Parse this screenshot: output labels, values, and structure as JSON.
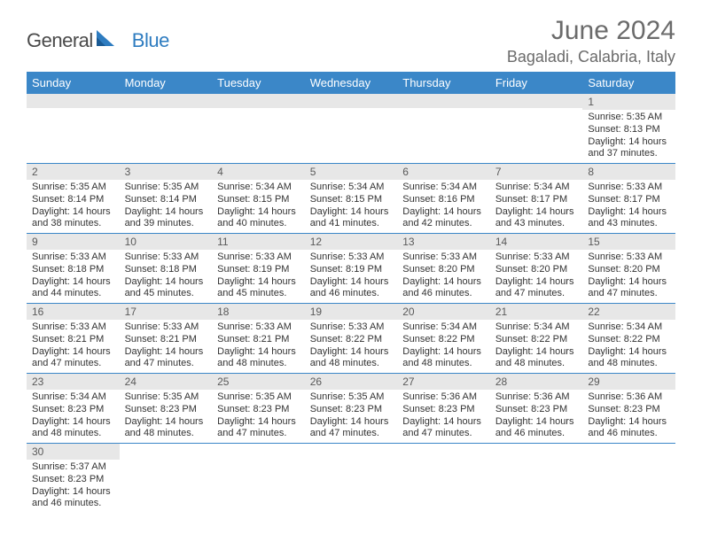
{
  "logo": {
    "general": "General",
    "blue": "Blue"
  },
  "title": "June 2024",
  "location": "Bagaladi, Calabria, Italy",
  "weekdays": [
    "Sunday",
    "Monday",
    "Tuesday",
    "Wednesday",
    "Thursday",
    "Friday",
    "Saturday"
  ],
  "colors": {
    "header_bg": "#3b87c8",
    "header_text": "#ffffff",
    "daynum_bg": "#e7e7e7",
    "rule": "#3b87c8",
    "title_color": "#6b6b6b",
    "logo_gray": "#4a4a4a",
    "logo_blue": "#2e7cc0"
  },
  "weeks": [
    [
      null,
      null,
      null,
      null,
      null,
      null,
      {
        "n": "1",
        "sunrise": "Sunrise: 5:35 AM",
        "sunset": "Sunset: 8:13 PM",
        "daylight": "Daylight: 14 hours and 37 minutes."
      }
    ],
    [
      {
        "n": "2",
        "sunrise": "Sunrise: 5:35 AM",
        "sunset": "Sunset: 8:14 PM",
        "daylight": "Daylight: 14 hours and 38 minutes."
      },
      {
        "n": "3",
        "sunrise": "Sunrise: 5:35 AM",
        "sunset": "Sunset: 8:14 PM",
        "daylight": "Daylight: 14 hours and 39 minutes."
      },
      {
        "n": "4",
        "sunrise": "Sunrise: 5:34 AM",
        "sunset": "Sunset: 8:15 PM",
        "daylight": "Daylight: 14 hours and 40 minutes."
      },
      {
        "n": "5",
        "sunrise": "Sunrise: 5:34 AM",
        "sunset": "Sunset: 8:15 PM",
        "daylight": "Daylight: 14 hours and 41 minutes."
      },
      {
        "n": "6",
        "sunrise": "Sunrise: 5:34 AM",
        "sunset": "Sunset: 8:16 PM",
        "daylight": "Daylight: 14 hours and 42 minutes."
      },
      {
        "n": "7",
        "sunrise": "Sunrise: 5:34 AM",
        "sunset": "Sunset: 8:17 PM",
        "daylight": "Daylight: 14 hours and 43 minutes."
      },
      {
        "n": "8",
        "sunrise": "Sunrise: 5:33 AM",
        "sunset": "Sunset: 8:17 PM",
        "daylight": "Daylight: 14 hours and 43 minutes."
      }
    ],
    [
      {
        "n": "9",
        "sunrise": "Sunrise: 5:33 AM",
        "sunset": "Sunset: 8:18 PM",
        "daylight": "Daylight: 14 hours and 44 minutes."
      },
      {
        "n": "10",
        "sunrise": "Sunrise: 5:33 AM",
        "sunset": "Sunset: 8:18 PM",
        "daylight": "Daylight: 14 hours and 45 minutes."
      },
      {
        "n": "11",
        "sunrise": "Sunrise: 5:33 AM",
        "sunset": "Sunset: 8:19 PM",
        "daylight": "Daylight: 14 hours and 45 minutes."
      },
      {
        "n": "12",
        "sunrise": "Sunrise: 5:33 AM",
        "sunset": "Sunset: 8:19 PM",
        "daylight": "Daylight: 14 hours and 46 minutes."
      },
      {
        "n": "13",
        "sunrise": "Sunrise: 5:33 AM",
        "sunset": "Sunset: 8:20 PM",
        "daylight": "Daylight: 14 hours and 46 minutes."
      },
      {
        "n": "14",
        "sunrise": "Sunrise: 5:33 AM",
        "sunset": "Sunset: 8:20 PM",
        "daylight": "Daylight: 14 hours and 47 minutes."
      },
      {
        "n": "15",
        "sunrise": "Sunrise: 5:33 AM",
        "sunset": "Sunset: 8:20 PM",
        "daylight": "Daylight: 14 hours and 47 minutes."
      }
    ],
    [
      {
        "n": "16",
        "sunrise": "Sunrise: 5:33 AM",
        "sunset": "Sunset: 8:21 PM",
        "daylight": "Daylight: 14 hours and 47 minutes."
      },
      {
        "n": "17",
        "sunrise": "Sunrise: 5:33 AM",
        "sunset": "Sunset: 8:21 PM",
        "daylight": "Daylight: 14 hours and 47 minutes."
      },
      {
        "n": "18",
        "sunrise": "Sunrise: 5:33 AM",
        "sunset": "Sunset: 8:21 PM",
        "daylight": "Daylight: 14 hours and 48 minutes."
      },
      {
        "n": "19",
        "sunrise": "Sunrise: 5:33 AM",
        "sunset": "Sunset: 8:22 PM",
        "daylight": "Daylight: 14 hours and 48 minutes."
      },
      {
        "n": "20",
        "sunrise": "Sunrise: 5:34 AM",
        "sunset": "Sunset: 8:22 PM",
        "daylight": "Daylight: 14 hours and 48 minutes."
      },
      {
        "n": "21",
        "sunrise": "Sunrise: 5:34 AM",
        "sunset": "Sunset: 8:22 PM",
        "daylight": "Daylight: 14 hours and 48 minutes."
      },
      {
        "n": "22",
        "sunrise": "Sunrise: 5:34 AM",
        "sunset": "Sunset: 8:22 PM",
        "daylight": "Daylight: 14 hours and 48 minutes."
      }
    ],
    [
      {
        "n": "23",
        "sunrise": "Sunrise: 5:34 AM",
        "sunset": "Sunset: 8:23 PM",
        "daylight": "Daylight: 14 hours and 48 minutes."
      },
      {
        "n": "24",
        "sunrise": "Sunrise: 5:35 AM",
        "sunset": "Sunset: 8:23 PM",
        "daylight": "Daylight: 14 hours and 48 minutes."
      },
      {
        "n": "25",
        "sunrise": "Sunrise: 5:35 AM",
        "sunset": "Sunset: 8:23 PM",
        "daylight": "Daylight: 14 hours and 47 minutes."
      },
      {
        "n": "26",
        "sunrise": "Sunrise: 5:35 AM",
        "sunset": "Sunset: 8:23 PM",
        "daylight": "Daylight: 14 hours and 47 minutes."
      },
      {
        "n": "27",
        "sunrise": "Sunrise: 5:36 AM",
        "sunset": "Sunset: 8:23 PM",
        "daylight": "Daylight: 14 hours and 47 minutes."
      },
      {
        "n": "28",
        "sunrise": "Sunrise: 5:36 AM",
        "sunset": "Sunset: 8:23 PM",
        "daylight": "Daylight: 14 hours and 46 minutes."
      },
      {
        "n": "29",
        "sunrise": "Sunrise: 5:36 AM",
        "sunset": "Sunset: 8:23 PM",
        "daylight": "Daylight: 14 hours and 46 minutes."
      }
    ],
    [
      {
        "n": "30",
        "sunrise": "Sunrise: 5:37 AM",
        "sunset": "Sunset: 8:23 PM",
        "daylight": "Daylight: 14 hours and 46 minutes."
      },
      null,
      null,
      null,
      null,
      null,
      null
    ]
  ]
}
